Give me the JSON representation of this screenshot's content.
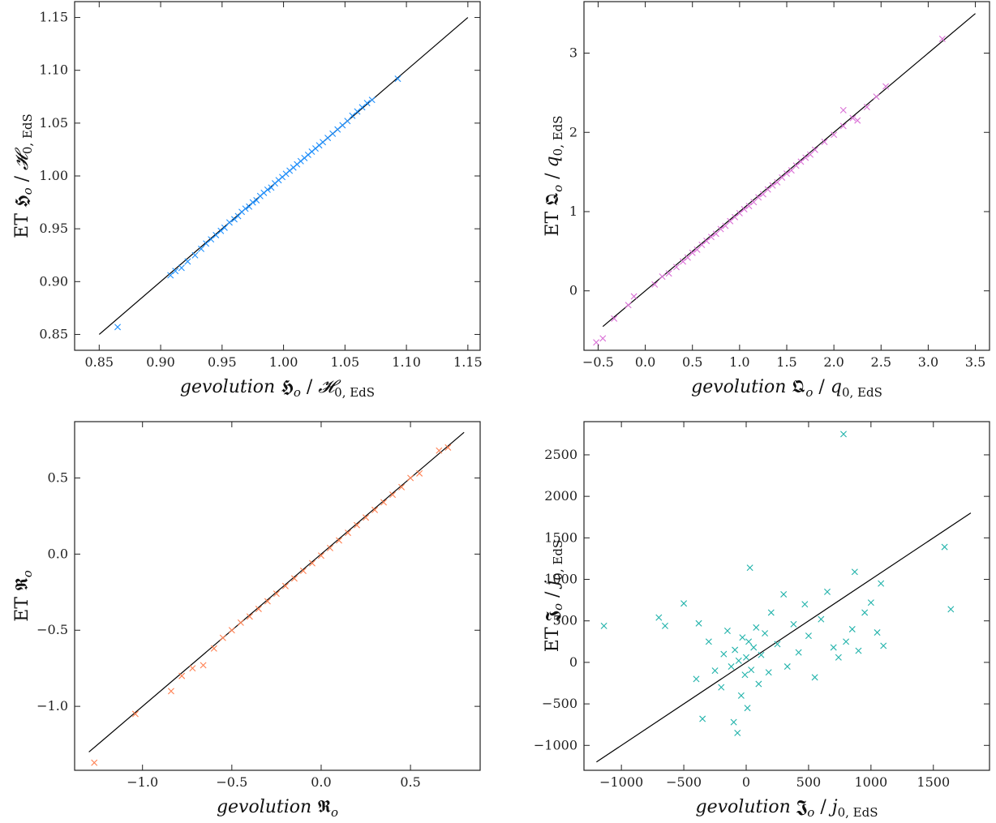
{
  "chart_data": [
    {
      "type": "scatter",
      "xlabel_parts": {
        "italic": "gevolution",
        "symbol": "𝕳",
        "sub_o": "o",
        "sep": " / ",
        "norm": "𝓗",
        "norm_sub": "0, EdS"
      },
      "ylabel_parts": {
        "prefix": "ET",
        "symbol": "𝕳",
        "sub_o": "o",
        "sep": " / ",
        "norm": "𝓗",
        "norm_sub": "0, EdS"
      },
      "xlim": [
        0.83,
        1.16
      ],
      "ylim": [
        0.835,
        1.165
      ],
      "xticks": [
        0.85,
        0.9,
        0.95,
        1.0,
        1.05,
        1.1,
        1.15
      ],
      "xtick_labels": [
        "0.85",
        "0.90",
        "0.95",
        "1.00",
        "1.05",
        "1.10",
        "1.15"
      ],
      "yticks": [
        0.85,
        0.9,
        0.95,
        1.0,
        1.05,
        1.1,
        1.15
      ],
      "ytick_labels": [
        "0.85",
        "0.90",
        "0.95",
        "1.00",
        "1.05",
        "1.10",
        "1.15"
      ],
      "reference_line": [
        [
          0.85,
          0.85
        ],
        [
          1.15,
          1.15
        ]
      ],
      "color": "#1e90ff",
      "marker": "x",
      "points": [
        [
          0.865,
          0.857
        ],
        [
          0.908,
          0.906
        ],
        [
          0.912,
          0.91
        ],
        [
          0.917,
          0.913
        ],
        [
          0.922,
          0.919
        ],
        [
          0.928,
          0.925
        ],
        [
          0.933,
          0.931
        ],
        [
          0.937,
          0.936
        ],
        [
          0.941,
          0.94
        ],
        [
          0.945,
          0.944
        ],
        [
          0.949,
          0.948
        ],
        [
          0.952,
          0.951
        ],
        [
          0.956,
          0.956
        ],
        [
          0.96,
          0.959
        ],
        [
          0.963,
          0.962
        ],
        [
          0.966,
          0.966
        ],
        [
          0.969,
          0.969
        ],
        [
          0.972,
          0.971
        ],
        [
          0.975,
          0.975
        ],
        [
          0.978,
          0.977
        ],
        [
          0.981,
          0.981
        ],
        [
          0.984,
          0.984
        ],
        [
          0.987,
          0.987
        ],
        [
          0.99,
          0.989
        ],
        [
          0.993,
          0.993
        ],
        [
          0.996,
          0.996
        ],
        [
          0.999,
          0.999
        ],
        [
          1.002,
          1.002
        ],
        [
          1.005,
          1.005
        ],
        [
          1.008,
          1.008
        ],
        [
          1.011,
          1.011
        ],
        [
          1.014,
          1.014
        ],
        [
          1.017,
          1.017
        ],
        [
          1.02,
          1.02
        ],
        [
          1.023,
          1.023
        ],
        [
          1.026,
          1.026
        ],
        [
          1.029,
          1.029
        ],
        [
          1.032,
          1.032
        ],
        [
          1.036,
          1.036
        ],
        [
          1.04,
          1.04
        ],
        [
          1.044,
          1.044
        ],
        [
          1.048,
          1.048
        ],
        [
          1.052,
          1.052
        ],
        [
          1.056,
          1.057
        ],
        [
          1.06,
          1.061
        ],
        [
          1.064,
          1.065
        ],
        [
          1.068,
          1.069
        ],
        [
          1.072,
          1.072
        ],
        [
          1.093,
          1.092
        ]
      ]
    },
    {
      "type": "scatter",
      "xlabel_parts": {
        "italic": "gevolution",
        "symbol": "𝕼",
        "sub_o": "o",
        "sep": " / ",
        "norm": "q",
        "norm_sub": "0, EdS"
      },
      "ylabel_parts": {
        "prefix": "ET",
        "symbol": "𝕼",
        "sub_o": "o",
        "sep": " / ",
        "norm": "q",
        "norm_sub": "0, EdS"
      },
      "xlim": [
        -0.65,
        3.65
      ],
      "ylim": [
        -0.75,
        3.65
      ],
      "xticks": [
        -0.5,
        0.0,
        0.5,
        1.0,
        1.5,
        2.0,
        2.5,
        3.0,
        3.5
      ],
      "xtick_labels": [
        "−0.5",
        "0.0",
        "0.5",
        "1.0",
        "1.5",
        "2.0",
        "2.5",
        "3.0",
        "3.5"
      ],
      "yticks": [
        0,
        1,
        2,
        3
      ],
      "ytick_labels": [
        "0",
        "1",
        "2",
        "3"
      ],
      "reference_line": [
        [
          -0.45,
          -0.45
        ],
        [
          3.5,
          3.5
        ]
      ],
      "color": "#da70d6",
      "marker": "x",
      "points": [
        [
          -0.52,
          -0.65
        ],
        [
          -0.45,
          -0.6
        ],
        [
          -0.33,
          -0.35
        ],
        [
          -0.18,
          -0.18
        ],
        [
          -0.12,
          -0.07
        ],
        [
          0.1,
          0.08
        ],
        [
          0.18,
          0.18
        ],
        [
          0.25,
          0.22
        ],
        [
          0.33,
          0.3
        ],
        [
          0.4,
          0.37
        ],
        [
          0.45,
          0.42
        ],
        [
          0.5,
          0.48
        ],
        [
          0.55,
          0.52
        ],
        [
          0.6,
          0.58
        ],
        [
          0.65,
          0.63
        ],
        [
          0.7,
          0.68
        ],
        [
          0.75,
          0.72
        ],
        [
          0.8,
          0.78
        ],
        [
          0.85,
          0.82
        ],
        [
          0.9,
          0.88
        ],
        [
          0.95,
          0.93
        ],
        [
          1.0,
          0.98
        ],
        [
          1.05,
          1.03
        ],
        [
          1.1,
          1.07
        ],
        [
          1.15,
          1.12
        ],
        [
          1.2,
          1.18
        ],
        [
          1.25,
          1.22
        ],
        [
          1.3,
          1.28
        ],
        [
          1.35,
          1.33
        ],
        [
          1.4,
          1.37
        ],
        [
          1.45,
          1.43
        ],
        [
          1.5,
          1.48
        ],
        [
          1.55,
          1.52
        ],
        [
          1.6,
          1.58
        ],
        [
          1.65,
          1.63
        ],
        [
          1.7,
          1.68
        ],
        [
          1.75,
          1.72
        ],
        [
          1.8,
          1.78
        ],
        [
          1.9,
          1.88
        ],
        [
          2.0,
          1.97
        ],
        [
          2.1,
          2.08
        ],
        [
          2.2,
          2.18
        ],
        [
          2.35,
          2.32
        ],
        [
          2.45,
          2.45
        ],
        [
          2.55,
          2.58
        ],
        [
          2.1,
          2.28
        ],
        [
          2.25,
          2.15
        ],
        [
          3.15,
          3.18
        ]
      ]
    },
    {
      "type": "scatter",
      "xlabel_parts": {
        "italic": "gevolution",
        "symbol": "𝕽",
        "sub_o": "o"
      },
      "ylabel_parts": {
        "prefix": "ET",
        "symbol": "𝕽",
        "sub_o": "o"
      },
      "xlim": [
        -1.38,
        0.89
      ],
      "ylim": [
        -1.42,
        0.87
      ],
      "xticks": [
        -1.0,
        -0.5,
        0.0,
        0.5
      ],
      "xtick_labels": [
        "−1.0",
        "−0.5",
        "0.0",
        "0.5"
      ],
      "yticks": [
        -1.0,
        -0.5,
        0.0,
        0.5
      ],
      "ytick_labels": [
        "−1.0",
        "−0.5",
        "0.0",
        "0.5"
      ],
      "reference_line": [
        [
          -1.3,
          -1.3
        ],
        [
          0.8,
          0.8
        ]
      ],
      "color": "#ff7f50",
      "marker": "x",
      "points": [
        [
          -1.27,
          -1.37
        ],
        [
          -1.04,
          -1.05
        ],
        [
          -0.84,
          -0.9
        ],
        [
          -0.78,
          -0.8
        ],
        [
          -0.72,
          -0.75
        ],
        [
          -0.66,
          -0.73
        ],
        [
          -0.6,
          -0.62
        ],
        [
          -0.55,
          -0.55
        ],
        [
          -0.5,
          -0.5
        ],
        [
          -0.45,
          -0.45
        ],
        [
          -0.4,
          -0.41
        ],
        [
          -0.35,
          -0.36
        ],
        [
          -0.3,
          -0.31
        ],
        [
          -0.25,
          -0.26
        ],
        [
          -0.2,
          -0.21
        ],
        [
          -0.15,
          -0.16
        ],
        [
          -0.1,
          -0.11
        ],
        [
          -0.05,
          -0.06
        ],
        [
          0.0,
          -0.01
        ],
        [
          0.05,
          0.04
        ],
        [
          0.1,
          0.09
        ],
        [
          0.15,
          0.14
        ],
        [
          0.2,
          0.19
        ],
        [
          0.25,
          0.24
        ],
        [
          0.3,
          0.29
        ],
        [
          0.35,
          0.34
        ],
        [
          0.4,
          0.39
        ],
        [
          0.45,
          0.44
        ],
        [
          0.5,
          0.5
        ],
        [
          0.55,
          0.53
        ],
        [
          0.66,
          0.68
        ],
        [
          0.71,
          0.7
        ]
      ]
    },
    {
      "type": "scatter",
      "xlabel_parts": {
        "italic": "gevolution",
        "symbol": "𝕵",
        "sub_o": "o",
        "sep": " / ",
        "norm": "j",
        "norm_sub": "0, EdS"
      },
      "ylabel_parts": {
        "prefix": "ET",
        "symbol": "𝕵",
        "sub_o": "o",
        "sep": " / ",
        "norm": "j",
        "norm_sub": "0, EdS"
      },
      "xlim": [
        -1300,
        1950
      ],
      "ylim": [
        -1300,
        2900
      ],
      "xticks": [
        -1000,
        -500,
        0,
        500,
        1000,
        1500
      ],
      "xtick_labels": [
        "−1000",
        "−500",
        "0",
        "500",
        "1000",
        "1500"
      ],
      "yticks": [
        -1000,
        -500,
        0,
        500,
        1000,
        1500,
        2000,
        2500
      ],
      "ytick_labels": [
        "−1000",
        "−500",
        "0",
        "500",
        "1000",
        "1500",
        "2000",
        "2500"
      ],
      "reference_line": [
        [
          -1200,
          -1200
        ],
        [
          1800,
          1800
        ]
      ],
      "color": "#20b2aa",
      "marker": "x",
      "points": [
        [
          -1140,
          440
        ],
        [
          -700,
          540
        ],
        [
          -650,
          440
        ],
        [
          -500,
          710
        ],
        [
          -400,
          -200
        ],
        [
          -380,
          470
        ],
        [
          -350,
          -680
        ],
        [
          -300,
          250
        ],
        [
          -250,
          -100
        ],
        [
          -200,
          -300
        ],
        [
          -180,
          100
        ],
        [
          -150,
          380
        ],
        [
          -120,
          -50
        ],
        [
          -100,
          -720
        ],
        [
          -90,
          150
        ],
        [
          -70,
          -850
        ],
        [
          -60,
          20
        ],
        [
          -40,
          -400
        ],
        [
          -30,
          300
        ],
        [
          -10,
          -150
        ],
        [
          0,
          60
        ],
        [
          10,
          -550
        ],
        [
          20,
          250
        ],
        [
          30,
          1140
        ],
        [
          40,
          -90
        ],
        [
          60,
          180
        ],
        [
          80,
          420
        ],
        [
          100,
          -260
        ],
        [
          120,
          90
        ],
        [
          150,
          350
        ],
        [
          180,
          -120
        ],
        [
          200,
          600
        ],
        [
          250,
          220
        ],
        [
          300,
          820
        ],
        [
          330,
          -50
        ],
        [
          380,
          460
        ],
        [
          420,
          120
        ],
        [
          470,
          700
        ],
        [
          500,
          320
        ],
        [
          550,
          -180
        ],
        [
          600,
          520
        ],
        [
          650,
          850
        ],
        [
          700,
          180
        ],
        [
          740,
          60
        ],
        [
          780,
          2750
        ],
        [
          800,
          250
        ],
        [
          850,
          400
        ],
        [
          870,
          1090
        ],
        [
          900,
          140
        ],
        [
          950,
          600
        ],
        [
          1000,
          720
        ],
        [
          1050,
          360
        ],
        [
          1080,
          950
        ],
        [
          1100,
          200
        ],
        [
          1590,
          1390
        ],
        [
          1640,
          640
        ]
      ]
    }
  ]
}
